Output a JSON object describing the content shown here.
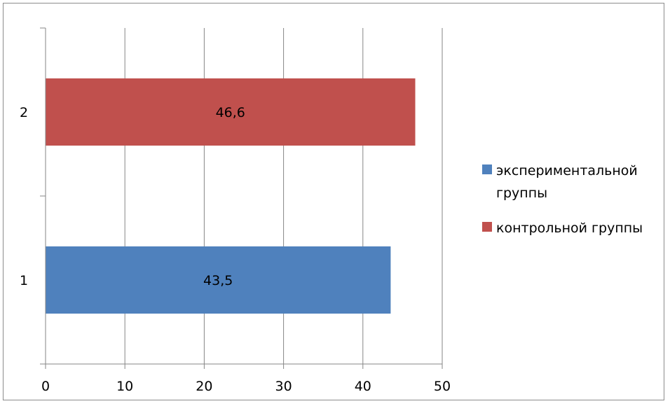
{
  "chart_data": {
    "type": "bar",
    "orientation": "horizontal",
    "categories": [
      "1",
      "2"
    ],
    "series": [
      {
        "name": "экспериментальной группы",
        "name_lines": [
          "экспериментальной",
          "группы"
        ],
        "color": "#4f81bd",
        "values": [
          43.5,
          null
        ]
      },
      {
        "name": "контрольной группы",
        "name_lines": [
          "контрольной группы"
        ],
        "color": "#c0504d",
        "values": [
          null,
          46.6
        ]
      }
    ],
    "data_labels": [
      "43,5",
      "46,6"
    ],
    "x_ticks": [
      "0",
      "10",
      "20",
      "30",
      "40",
      "50"
    ],
    "xlim": [
      0,
      50
    ],
    "grid": true,
    "legend": "right",
    "title": "",
    "xlabel": "",
    "ylabel": ""
  }
}
